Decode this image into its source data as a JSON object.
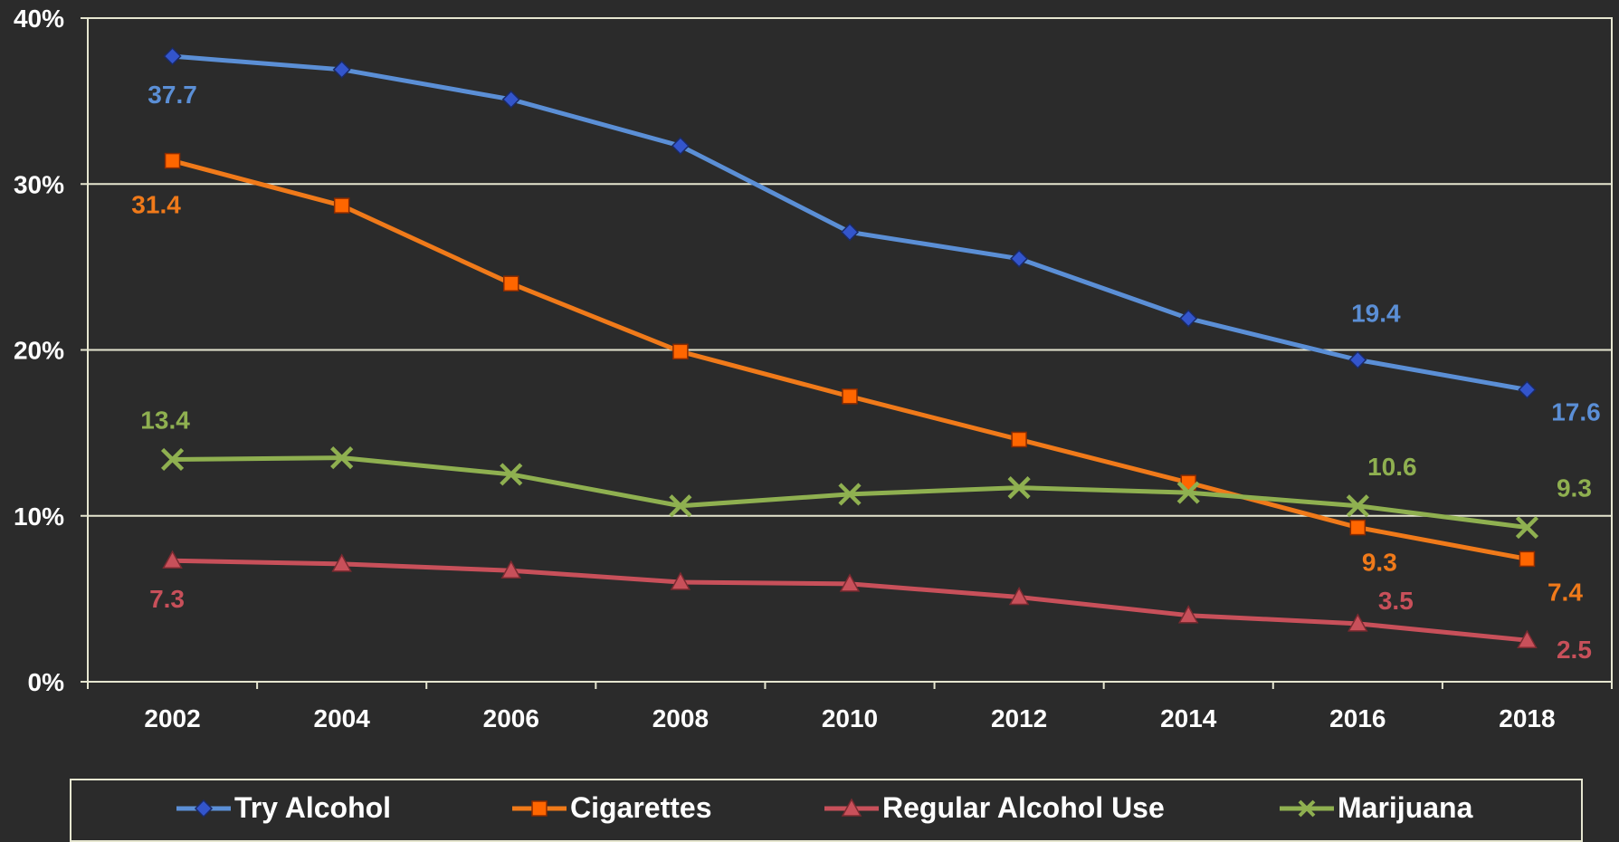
{
  "chart_data": {
    "type": "line",
    "title": "",
    "xlabel": "",
    "ylabel": "",
    "categories": [
      "2002",
      "2004",
      "2006",
      "2008",
      "2010",
      "2012",
      "2014",
      "2016",
      "2018"
    ],
    "ylim": [
      0,
      40
    ],
    "yticks": [
      "0%",
      "10%",
      "20%",
      "30%",
      "40%"
    ],
    "grid": true,
    "legend_position": "bottom",
    "series": [
      {
        "name": "Try Alcohol",
        "color": "#5b8fd6",
        "marker": "diamond",
        "values": [
          37.7,
          36.9,
          35.1,
          32.3,
          27.1,
          25.5,
          21.9,
          19.4,
          17.6
        ],
        "labels": {
          "0": "37.7",
          "7": "19.4",
          "8": "17.6"
        }
      },
      {
        "name": "Cigarettes",
        "color": "#f07a1a",
        "marker": "square",
        "values": [
          31.4,
          28.7,
          24.0,
          19.9,
          17.2,
          14.6,
          12.0,
          9.3,
          7.4
        ],
        "labels": {
          "0": "31.4",
          "7": "9.3",
          "8": "7.4"
        }
      },
      {
        "name": "Regular Alcohol Use",
        "color": "#c8505a",
        "marker": "triangle",
        "values": [
          7.3,
          7.1,
          6.7,
          6.0,
          5.9,
          5.1,
          4.0,
          3.5,
          2.5
        ],
        "labels": {
          "0": "7.3",
          "7": "3.5",
          "8": "2.5"
        }
      },
      {
        "name": "Marijuana",
        "color": "#8fb050",
        "marker": "x",
        "values": [
          13.4,
          13.5,
          12.5,
          10.6,
          11.3,
          11.7,
          11.4,
          10.6,
          9.3
        ],
        "labels": {
          "0": "13.4",
          "7": "10.6",
          "8": "9.3"
        }
      }
    ]
  }
}
